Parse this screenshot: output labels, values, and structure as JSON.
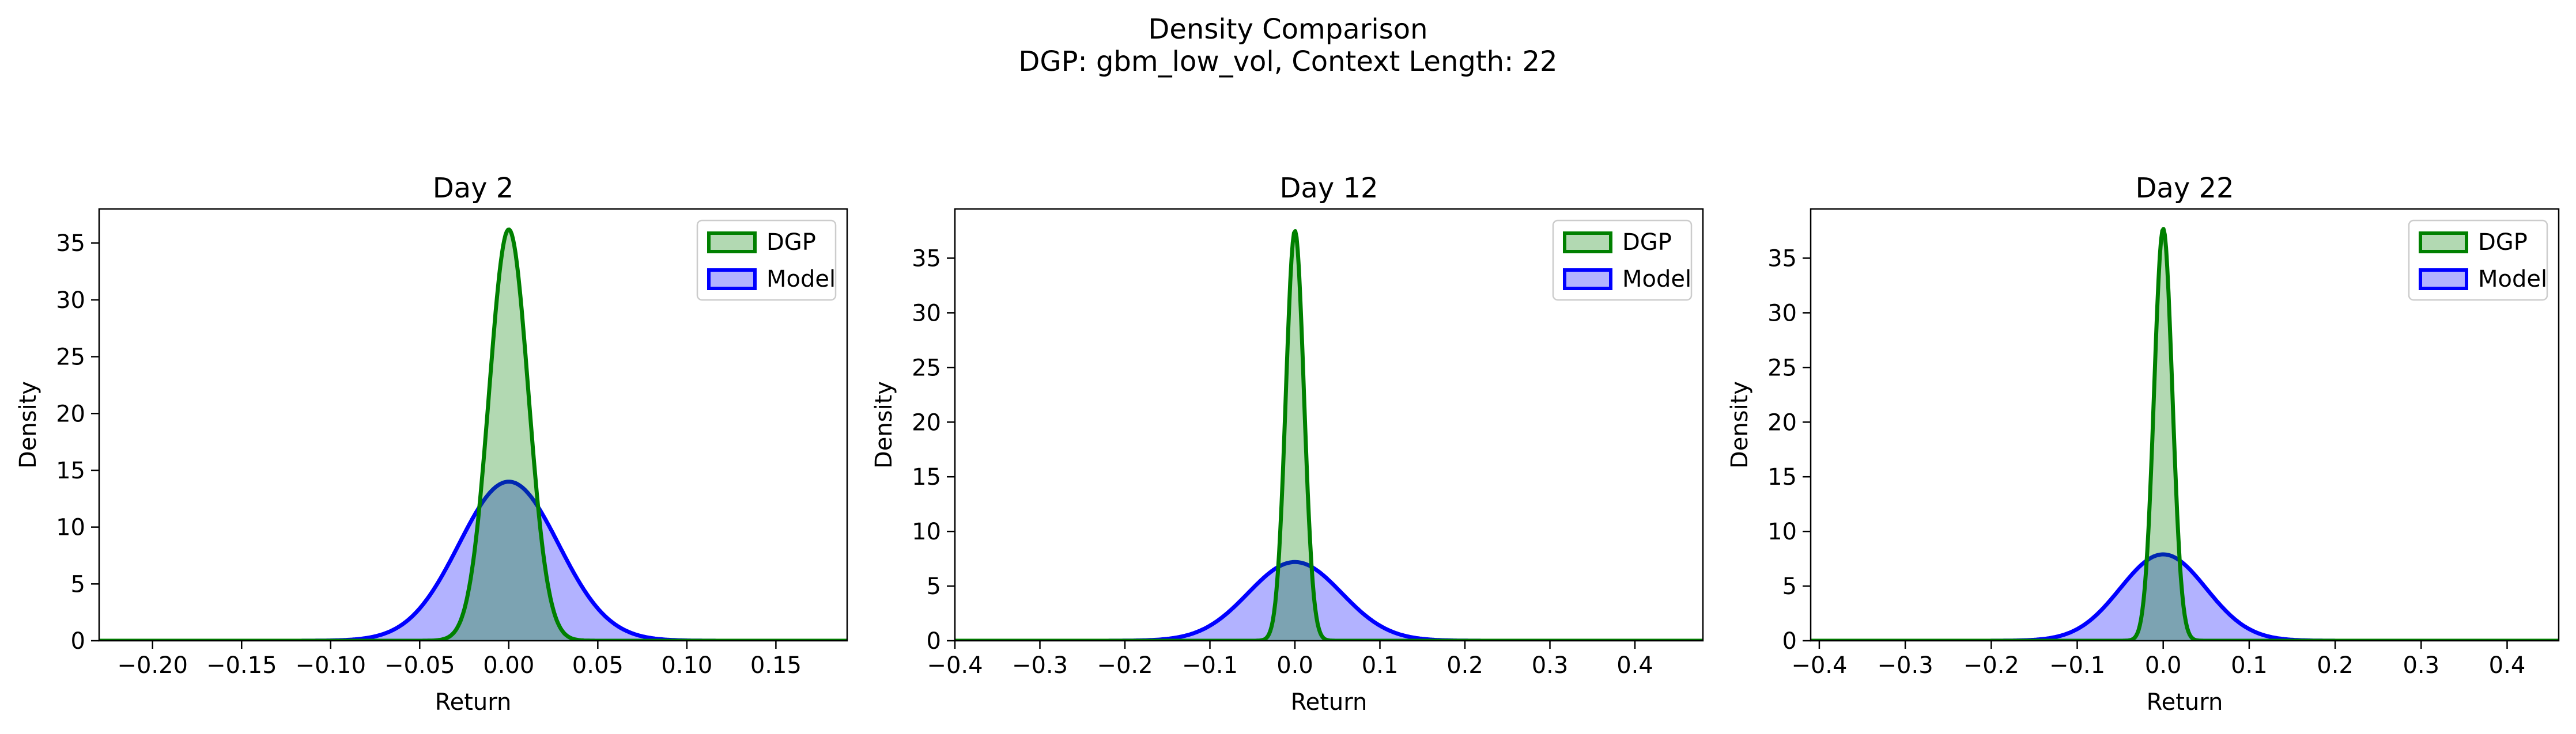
{
  "figure": {
    "title_line1": "Density Comparison",
    "title_line2": "DGP: gbm_low_vol, Context Length: 22"
  },
  "colors": {
    "dgp_line": "#008000",
    "dgp_fill": "#b2d8b2",
    "model_line": "#0000ff",
    "model_fill": "#b2b2ff",
    "overlap_fill": "#7f9fc4"
  },
  "chart_data": [
    {
      "type": "area",
      "title": "Day 2",
      "xlabel": "Return",
      "ylabel": "Density",
      "xlim": [
        -0.23,
        0.19
      ],
      "ylim": [
        0,
        38
      ],
      "xticks": [
        -0.2,
        -0.15,
        -0.1,
        -0.05,
        0.0,
        0.05,
        0.1,
        0.15
      ],
      "xtick_labels": [
        "−0.20",
        "−0.15",
        "−0.10",
        "−0.05",
        "0.00",
        "0.05",
        "0.10",
        "0.15"
      ],
      "yticks": [
        0,
        5,
        10,
        15,
        20,
        25,
        30,
        35
      ],
      "yticks_labels": [
        "0",
        "5",
        "10",
        "15",
        "20",
        "25",
        "30",
        "35"
      ],
      "legend": "top-right",
      "grid": false,
      "series": [
        {
          "name": "DGP",
          "peak": 36.2,
          "mean": 0.0,
          "std": 0.011
        },
        {
          "name": "Model",
          "peak": 14.0,
          "mean": 0.0,
          "std": 0.028
        }
      ]
    },
    {
      "type": "area",
      "title": "Day 12",
      "xlabel": "Return",
      "ylabel": "Density",
      "xlim": [
        -0.4,
        0.48
      ],
      "ylim": [
        0,
        39.5
      ],
      "xticks": [
        -0.4,
        -0.3,
        -0.2,
        -0.1,
        0.0,
        0.1,
        0.2,
        0.3,
        0.4
      ],
      "xtick_labels": [
        "−0.4",
        "−0.3",
        "−0.2",
        "−0.1",
        "0.0",
        "0.1",
        "0.2",
        "0.3",
        "0.4"
      ],
      "yticks": [
        0,
        5,
        10,
        15,
        20,
        25,
        30,
        35
      ],
      "yticks_labels": [
        "0",
        "5",
        "10",
        "15",
        "20",
        "25",
        "30",
        "35"
      ],
      "legend": "top-right",
      "grid": false,
      "series": [
        {
          "name": "DGP",
          "peak": 37.5,
          "mean": 0.0,
          "std": 0.0106
        },
        {
          "name": "Model",
          "peak": 7.2,
          "mean": 0.0,
          "std": 0.055
        }
      ]
    },
    {
      "type": "area",
      "title": "Day 22",
      "xlabel": "Return",
      "ylabel": "Density",
      "xlim": [
        -0.41,
        0.46
      ],
      "ylim": [
        0,
        39.5
      ],
      "xticks": [
        -0.4,
        -0.3,
        -0.2,
        -0.1,
        0.0,
        0.1,
        0.2,
        0.3,
        0.4
      ],
      "xtick_labels": [
        "−0.4",
        "−0.3",
        "−0.2",
        "−0.1",
        "0.0",
        "0.1",
        "0.2",
        "0.3",
        "0.4"
      ],
      "yticks": [
        0,
        5,
        10,
        15,
        20,
        25,
        30,
        35
      ],
      "yticks_labels": [
        "0",
        "5",
        "10",
        "15",
        "20",
        "25",
        "30",
        "35"
      ],
      "legend": "top-right",
      "grid": false,
      "series": [
        {
          "name": "DGP",
          "peak": 37.7,
          "mean": 0.0,
          "std": 0.0106
        },
        {
          "name": "Model",
          "peak": 7.9,
          "mean": 0.0,
          "std": 0.05
        }
      ]
    }
  ]
}
